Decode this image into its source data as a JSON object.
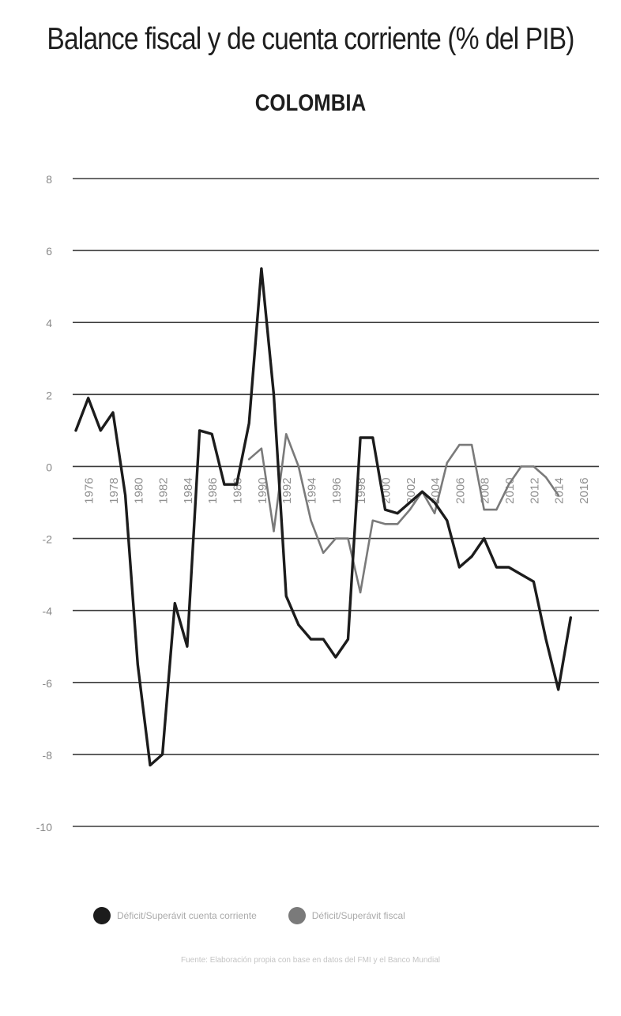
{
  "chart_data": {
    "type": "line",
    "title": "Balance fiscal y de cuenta corriente (% del PIB)",
    "subtitle": "COLOMBIA",
    "xlabel": "",
    "ylabel": "",
    "ylim": [
      -10,
      8
    ],
    "yticks": [
      -10,
      -8,
      -6,
      -4,
      -2,
      0,
      2,
      4,
      6,
      8
    ],
    "ytick_labels": [
      "-10",
      "-8",
      "-6",
      "-4",
      "-2",
      "0",
      "2",
      "4",
      "6",
      "8"
    ],
    "xtick_labels": [
      "1976",
      "1978",
      "1980",
      "1982",
      "1984",
      "1986",
      "1988",
      "1990",
      "1992",
      "1994",
      "1996",
      "1998",
      "2000",
      "2002",
      "2004",
      "2006",
      "2008",
      "2010",
      "2012",
      "2014",
      "2016"
    ],
    "grid": true,
    "legend": "bottom",
    "series": [
      {
        "key": "current_account",
        "name": "Déficit/Superávit cuenta corriente",
        "color": "#1c1c1c",
        "x": [
          1975,
          1976,
          1977,
          1978,
          1979,
          1980,
          1981,
          1982,
          1983,
          1984,
          1985,
          1986,
          1987,
          1988,
          1989,
          1990,
          1991,
          1992,
          1993,
          1994,
          1995,
          1996,
          1997,
          1998,
          1999,
          2000,
          2001,
          2002,
          2003,
          2004,
          2005,
          2006,
          2007,
          2008,
          2009,
          2010,
          2011,
          2012,
          2013,
          2014,
          2015
        ],
        "values": [
          1.0,
          1.9,
          1.0,
          1.5,
          -0.8,
          -5.5,
          -8.3,
          -8.0,
          -3.8,
          -5.0,
          1.0,
          0.9,
          -0.5,
          -0.5,
          1.2,
          5.5,
          2.0,
          -3.6,
          -4.4,
          -4.8,
          -4.8,
          -5.3,
          -4.8,
          0.8,
          0.8,
          -1.2,
          -1.3,
          -1.0,
          -0.7,
          -1.0,
          -1.5,
          -2.8,
          -2.5,
          -2.0,
          -2.8,
          -2.8,
          -3.0,
          -3.2,
          -4.8,
          -6.2,
          -4.2
        ]
      },
      {
        "key": "fiscal",
        "name": "Déficit/Superávit fiscal",
        "color": "#7a7a7a",
        "x": [
          1989,
          1990,
          1991,
          1992,
          1993,
          1994,
          1995,
          1996,
          1997,
          1998,
          1999,
          2000,
          2001,
          2002,
          2003,
          2004,
          2005,
          2006,
          2007,
          2008,
          2009,
          2010,
          2011,
          2012,
          2013,
          2014
        ],
        "values": [
          0.2,
          0.5,
          -1.8,
          0.9,
          0.0,
          -1.5,
          -2.4,
          -2.0,
          -2.0,
          -3.5,
          -1.5,
          -1.6,
          -1.6,
          -1.2,
          -0.7,
          -1.3,
          0.1,
          0.6,
          0.6,
          -1.2,
          -1.2,
          -0.5,
          0.0,
          0.0,
          -0.3,
          -0.8
        ]
      }
    ],
    "source": "Fuente: Elaboración propia con base en datos del FMI y el Banco Mundial"
  }
}
